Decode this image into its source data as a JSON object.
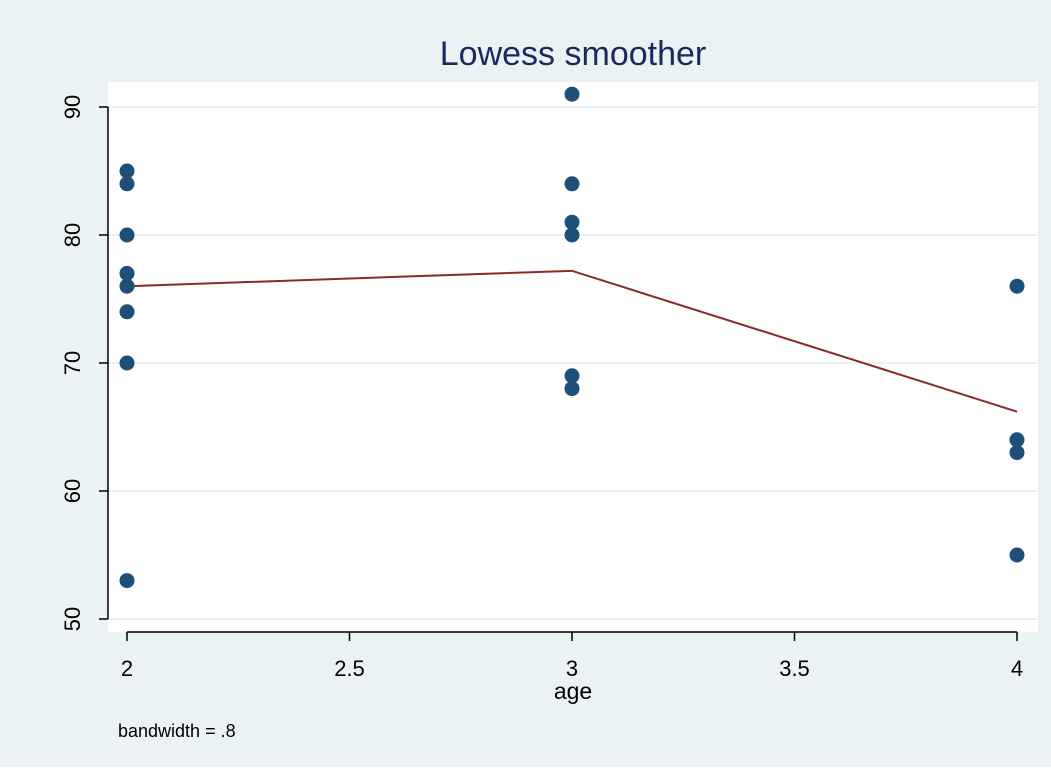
{
  "chart_data": {
    "type": "scatter",
    "title": "Lowess smoother",
    "xlabel": "age",
    "ylabel": "",
    "note": "bandwidth = .8",
    "xlim": [
      2,
      4
    ],
    "ylim": [
      50,
      90
    ],
    "x_ticks": [
      2,
      2.5,
      3,
      3.5,
      4
    ],
    "x_tick_labels": [
      "2",
      "2.5",
      "3",
      "3.5",
      "4"
    ],
    "y_ticks": [
      50,
      60,
      70,
      80,
      90
    ],
    "y_tick_labels": [
      "50",
      "60",
      "70",
      "80",
      "90"
    ],
    "grid": true,
    "legend": "none",
    "series": [
      {
        "type": "scatter",
        "color": "#1f4e79",
        "points": [
          {
            "x": 2,
            "y": 85
          },
          {
            "x": 2,
            "y": 84
          },
          {
            "x": 2,
            "y": 80
          },
          {
            "x": 2,
            "y": 77
          },
          {
            "x": 2,
            "y": 76
          },
          {
            "x": 2,
            "y": 74
          },
          {
            "x": 2,
            "y": 70
          },
          {
            "x": 2,
            "y": 53
          },
          {
            "x": 3,
            "y": 91
          },
          {
            "x": 3,
            "y": 84
          },
          {
            "x": 3,
            "y": 81
          },
          {
            "x": 3,
            "y": 80
          },
          {
            "x": 3,
            "y": 69
          },
          {
            "x": 3,
            "y": 68
          },
          {
            "x": 4,
            "y": 76
          },
          {
            "x": 4,
            "y": 64
          },
          {
            "x": 4,
            "y": 63
          },
          {
            "x": 4,
            "y": 55
          }
        ]
      },
      {
        "type": "line",
        "color": "#8b2a2a",
        "points": [
          {
            "x": 2,
            "y": 76.0
          },
          {
            "x": 3,
            "y": 77.2
          },
          {
            "x": 4,
            "y": 66.2
          }
        ]
      }
    ],
    "colors": {
      "outer_background": "#eaf2f3",
      "plot_background": "#ffffff",
      "grid": "#eaf2f3",
      "title": "#1a2a5e",
      "text": "#000000"
    }
  }
}
